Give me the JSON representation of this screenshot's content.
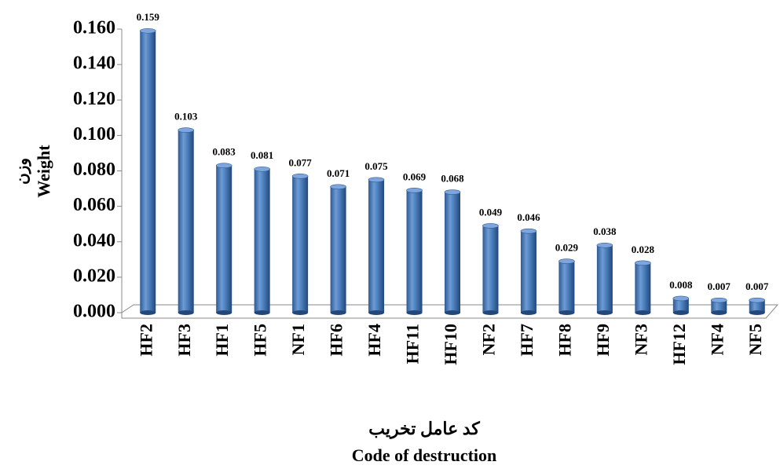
{
  "chart_data": {
    "type": "bar",
    "y_label": [
      "وزن",
      "Weight"
    ],
    "x_label": [
      "کد عامل تخریب",
      "Code of destruction"
    ],
    "categories": [
      "HF2",
      "HF3",
      "HF1",
      "HF5",
      "NF1",
      "HF6",
      "HF4",
      "HF11",
      "HF10",
      "NF2",
      "HF7",
      "HF8",
      "HF9",
      "NF3",
      "HF12",
      "NF4",
      "NF5"
    ],
    "values": [
      0.159,
      0.103,
      0.083,
      0.081,
      0.077,
      0.071,
      0.075,
      0.069,
      0.068,
      0.049,
      0.046,
      0.029,
      0.038,
      0.028,
      0.008,
      0.007,
      0.007
    ],
    "color": "#4a7ebb",
    "ylim": [
      0,
      0.16
    ],
    "yticks": [
      {
        "value": 0,
        "label": "0.000"
      },
      {
        "value": 0.02,
        "label": "0.020"
      },
      {
        "value": 0.04,
        "label": "0.040"
      },
      {
        "value": 0.06,
        "label": "0.060"
      },
      {
        "value": 0.08,
        "label": "0.080"
      },
      {
        "value": 0.1,
        "label": "0.100"
      },
      {
        "value": 0.12,
        "label": "0.120"
      },
      {
        "value": 0.14,
        "label": "0.140"
      },
      {
        "value": 0.16,
        "label": "0.160"
      }
    ]
  }
}
